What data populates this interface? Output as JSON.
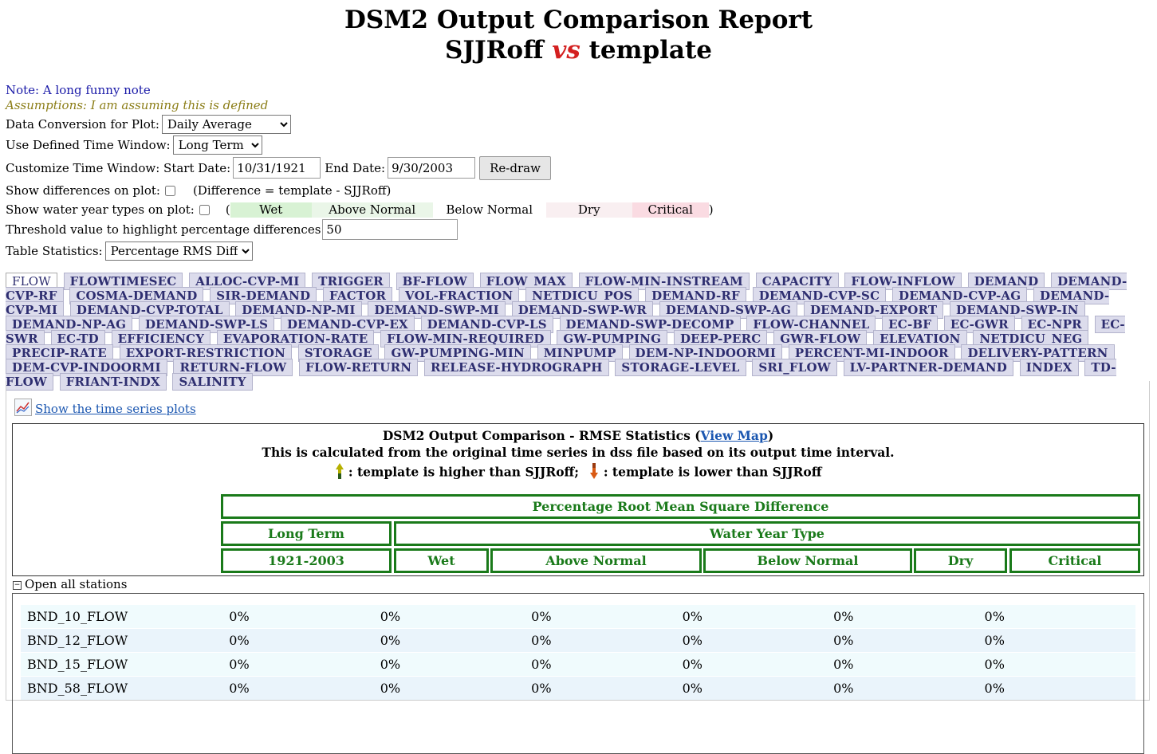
{
  "title": {
    "line1": "DSM2 Output Comparison Report",
    "base": "SJJRoff",
    "vs": "vs",
    "alt": "template"
  },
  "note": "Note: A long funny note",
  "assumptions": "Assumptions: I am assuming this is defined",
  "data_conversion": {
    "label": "Data Conversion for Plot:",
    "value": "Daily Average"
  },
  "time_window": {
    "label": "Use Defined Time Window:",
    "value": "Long Term"
  },
  "custom_window": {
    "label": "Customize Time Window: Start Date:",
    "start": "10/31/1921",
    "end_label": "End Date:",
    "end": "9/30/2003",
    "redraw": "Re-draw"
  },
  "differences": {
    "label": "Show differences on plot:",
    "note": "(Difference = template - SJJRoff)"
  },
  "water_year": {
    "label": "Show water year types on plot:",
    "open": "(",
    "close": ")",
    "types": [
      {
        "name": "Wet",
        "color": "#d8f2d4"
      },
      {
        "name": "Above Normal",
        "color": "#eaf6e8"
      },
      {
        "name": "Below Normal",
        "color": "#ffffff"
      },
      {
        "name": "Dry",
        "color": "#f9eff1"
      },
      {
        "name": "Critical",
        "color": "#fadbe2"
      }
    ]
  },
  "threshold": {
    "label": "Threshold value to highlight percentage differences",
    "value": "50"
  },
  "table_stats": {
    "label": "Table Statistics:",
    "value": "Percentage RMS Diff"
  },
  "tabs": [
    "FLOW",
    "FLOWTIMESEC",
    "ALLOC-CVP-MI",
    "TRIGGER",
    "BF-FLOW",
    "FLOW_MAX",
    "FLOW-MIN-INSTREAM",
    "CAPACITY",
    "FLOW-INFLOW",
    "DEMAND",
    "DEMAND-CVP-RF",
    "COSMA-DEMAND",
    "SIR-DEMAND",
    "FACTOR",
    "VOL-FRACTION",
    "NETDICU_POS",
    "DEMAND-RF",
    "DEMAND-CVP-SC",
    "DEMAND-CVP-AG",
    "DEMAND-CVP-MI",
    "DEMAND-CVP-TOTAL",
    "DEMAND-NP-MI",
    "DEMAND-SWP-MI",
    "DEMAND-SWP-WR",
    "DEMAND-SWP-AG",
    "DEMAND-EXPORT",
    "DEMAND-SWP-IN",
    "DEMAND-NP-AG",
    "DEMAND-SWP-LS",
    "DEMAND-CVP-EX",
    "DEMAND-CVP-LS",
    "DEMAND-SWP-DECOMP",
    "FLOW-CHANNEL",
    "EC-BF",
    "EC-GWR",
    "EC-NPR",
    "EC-SWR",
    "EC-TD",
    "EFFICIENCY",
    "EVAPORATION-RATE",
    "FLOW-MIN-REQUIRED",
    "GW-PUMPING",
    "DEEP-PERC",
    "GWR-FLOW",
    "ELEVATION",
    "NETDICU_NEG",
    "PRECIP-RATE",
    "EXPORT-RESTRICTION",
    "STORAGE",
    "GW-PUMPING-MIN",
    "MINPUMP",
    "DEM-NP-INDOORMI",
    "PERCENT-MI-INDOOR",
    "DELIVERY-PATTERN",
    "DEM-CVP-INDOORMI",
    "RETURN-FLOW",
    "FLOW-RETURN",
    "RELEASE-HYDROGRAPH",
    "STORAGE-LEVEL",
    "SRI_FLOW",
    "LV-PARTNER-DEMAND",
    "INDEX",
    "TD-FLOW",
    "FRIANT-INDX",
    "SALINITY"
  ],
  "show_plots": "Show the time series plots",
  "stats": {
    "title": "DSM2 Output Comparison - RMSE Statistics (",
    "map_link": "View Map",
    "title_close": ")",
    "subtitle": "This is calculated from the original time series in dss file based on its output time interval.",
    "legend_higher": ": template is higher than SJJRoff;",
    "legend_lower": ": template is lower than SJJRoff",
    "header_main": "Percentage Root Mean Square Difference",
    "header_long": "Long Term",
    "header_wyt": "Water Year Type",
    "header_period": "1921-2003",
    "header_wet": "Wet",
    "header_an": "Above Normal",
    "header_bn": "Below Normal",
    "header_dry": "Dry",
    "header_critical": "Critical"
  },
  "open_all": "Open all stations",
  "rows": [
    {
      "name": "BND_10_FLOW",
      "values": [
        "0%",
        "0%",
        "0%",
        "0%",
        "0%",
        "0%"
      ],
      "bg": "#f0fbfd"
    },
    {
      "name": "BND_12_FLOW",
      "values": [
        "0%",
        "0%",
        "0%",
        "0%",
        "0%",
        "0%"
      ],
      "bg": "#eaf4fb"
    },
    {
      "name": "BND_15_FLOW",
      "values": [
        "0%",
        "0%",
        "0%",
        "0%",
        "0%",
        "0%"
      ],
      "bg": "#f0fbfd"
    },
    {
      "name": "BND_58_FLOW",
      "values": [
        "0%",
        "0%",
        "0%",
        "0%",
        "0%",
        "0%"
      ],
      "bg": "#eaf4fb"
    }
  ]
}
